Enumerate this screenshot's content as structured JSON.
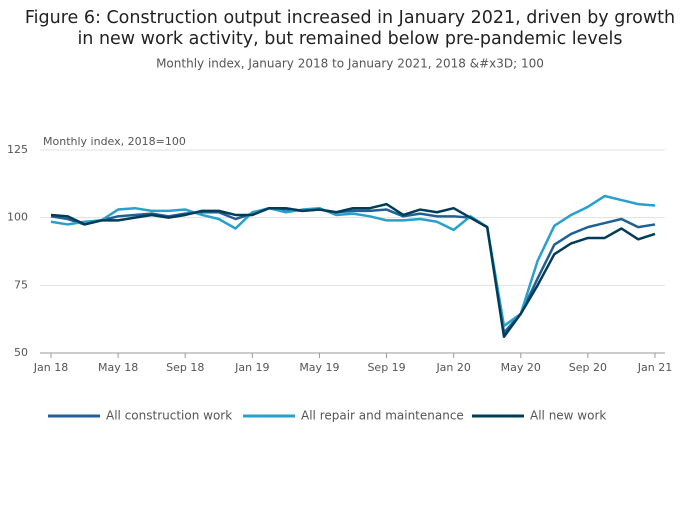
{
  "chart_data": {
    "type": "line",
    "title": [
      "Figure 6: Construction output increased in January 2021, driven by growth",
      "in new work activity, but remained below pre-pandemic levels"
    ],
    "subtitle": "Monthly index, January 2018 to January 2021, 2018 &#x3D; 100",
    "y_label": "Monthly index, 2018=100",
    "categories": [
      "Jan 18",
      null,
      null,
      null,
      "May 18",
      null,
      null,
      null,
      "Sep 18",
      null,
      null,
      null,
      "Jan 19",
      null,
      null,
      null,
      "May 19",
      null,
      null,
      null,
      "Sep 19",
      null,
      null,
      null,
      "Jan 20",
      null,
      null,
      null,
      "May 20",
      null,
      null,
      null,
      "Sep 20",
      null,
      null,
      null,
      "Jan 21"
    ],
    "series": [
      {
        "name": "All construction work",
        "color": "#206095",
        "values": [
          100.5,
          99.5,
          97.5,
          99,
          100.5,
          101,
          101.5,
          100.5,
          101.5,
          102,
          102,
          99.5,
          101.5,
          103.5,
          103,
          102.5,
          103,
          102,
          102.5,
          102.5,
          103,
          100.5,
          101.5,
          100.5,
          100.5,
          100,
          96.5,
          57.5,
          64.5,
          77.5,
          90,
          94,
          96.5,
          98,
          99.5,
          96.5,
          97.5
        ]
      },
      {
        "name": "All repair and maintenance",
        "color": "#27a0cc",
        "values": [
          98.5,
          97.5,
          98.5,
          99,
          103,
          103.5,
          102.5,
          102.5,
          103,
          101,
          99.5,
          96,
          102,
          103.5,
          102,
          103,
          103.5,
          101,
          101.5,
          100.5,
          99,
          99,
          99.5,
          98.5,
          95.5,
          100.5,
          96.5,
          60,
          64.5,
          84,
          97,
          101,
          104,
          108,
          106.5,
          105,
          104.5
        ]
      },
      {
        "name": "All new work",
        "color": "#003c57",
        "values": [
          101,
          100.5,
          97.5,
          99,
          99,
          100,
          101,
          100,
          101,
          102.5,
          102.5,
          101,
          101,
          103.5,
          103.5,
          102.5,
          103,
          102,
          103.5,
          103.5,
          105,
          101,
          103,
          102,
          103.5,
          100,
          96.5,
          56,
          64.5,
          75,
          86.5,
          90.5,
          92.5,
          92.5,
          96,
          92,
          94
        ]
      }
    ],
    "ylim": [
      50,
      125
    ],
    "yticks": [
      50,
      75,
      100,
      125
    ],
    "grid": true
  }
}
